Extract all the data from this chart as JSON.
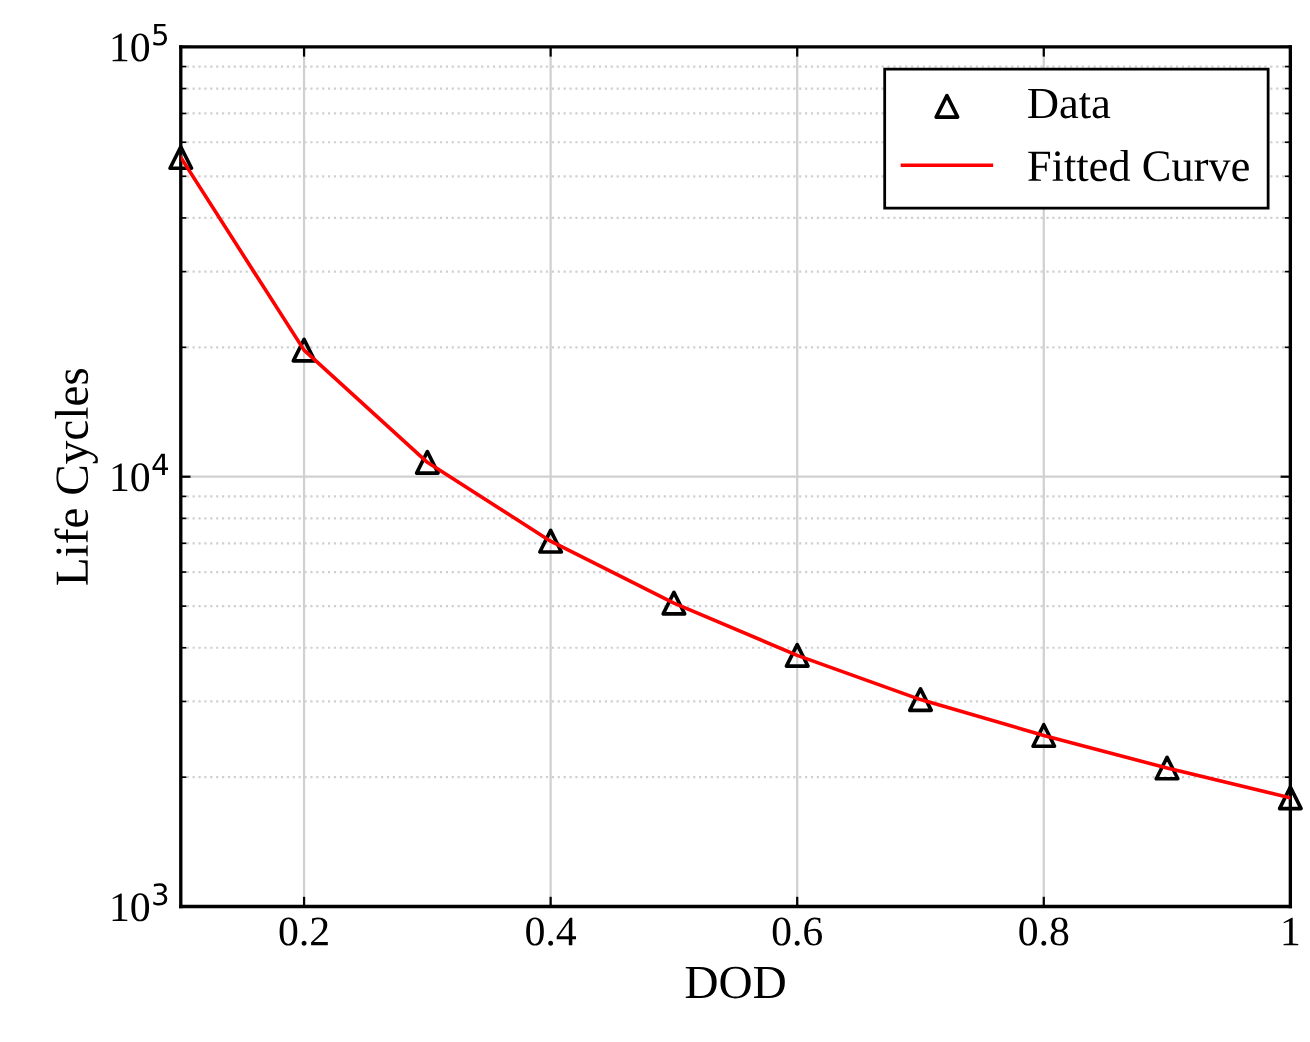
{
  "chart_data": {
    "type": "scatter",
    "xlabel": "DOD",
    "ylabel": "Life Cycles",
    "log": "y",
    "grid": true,
    "legend": "top right",
    "xlim": [
      0.1,
      1
    ],
    "xticks": [
      0.2,
      0.4,
      0.6,
      0.8,
      1
    ],
    "ylim": [
      1000,
      100000
    ],
    "yticks": [
      {
        "value": 1000,
        "label": "10$^{3}$"
      },
      {
        "value": 10000,
        "label": "10$^{4}$"
      },
      {
        "value": 100000,
        "label": "10$^{5}$"
      }
    ],
    "series": [
      {
        "name": "Data",
        "marker": "triangle",
        "color": "#000000",
        "x": [
          0.1,
          0.2,
          0.3,
          0.4,
          0.5,
          0.6,
          0.7,
          0.8,
          0.9,
          1.0
        ],
        "values": [
          55300,
          19700,
          10800,
          7080,
          5080,
          3840,
          3030,
          2500,
          2100,
          1790
        ]
      },
      {
        "name": "Fitted Curve",
        "type": "line",
        "line_style": "solid",
        "color": "#ff0000",
        "x": [
          0.1,
          0.2,
          0.3,
          0.4,
          0.5,
          0.6,
          0.7,
          0.8,
          0.9,
          1.0
        ],
        "values": [
          55300,
          19700,
          10800,
          7080,
          5080,
          3840,
          3030,
          2500,
          2100,
          1790
        ]
      }
    ]
  }
}
